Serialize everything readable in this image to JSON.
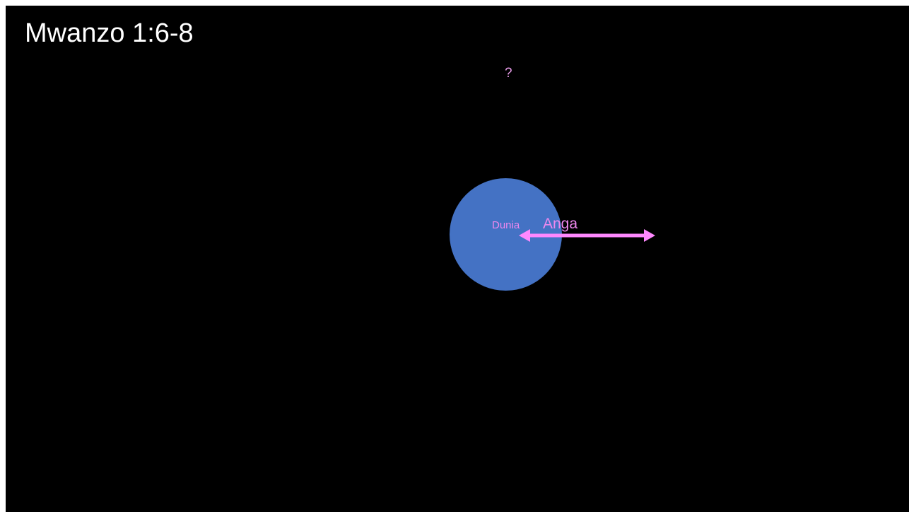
{
  "slide": {
    "title": "Mwanzo 1:6-8",
    "question_mark": "?",
    "earth_label": "Dunia",
    "sky_label": "Anga"
  },
  "colors": {
    "background": "#000000",
    "title_text": "#ffffff",
    "earth_fill": "#4472c4",
    "label_text": "#ee88ee",
    "arrow": "#ff88ff"
  },
  "icons": {
    "arrow": "double-headed-arrow-icon"
  }
}
